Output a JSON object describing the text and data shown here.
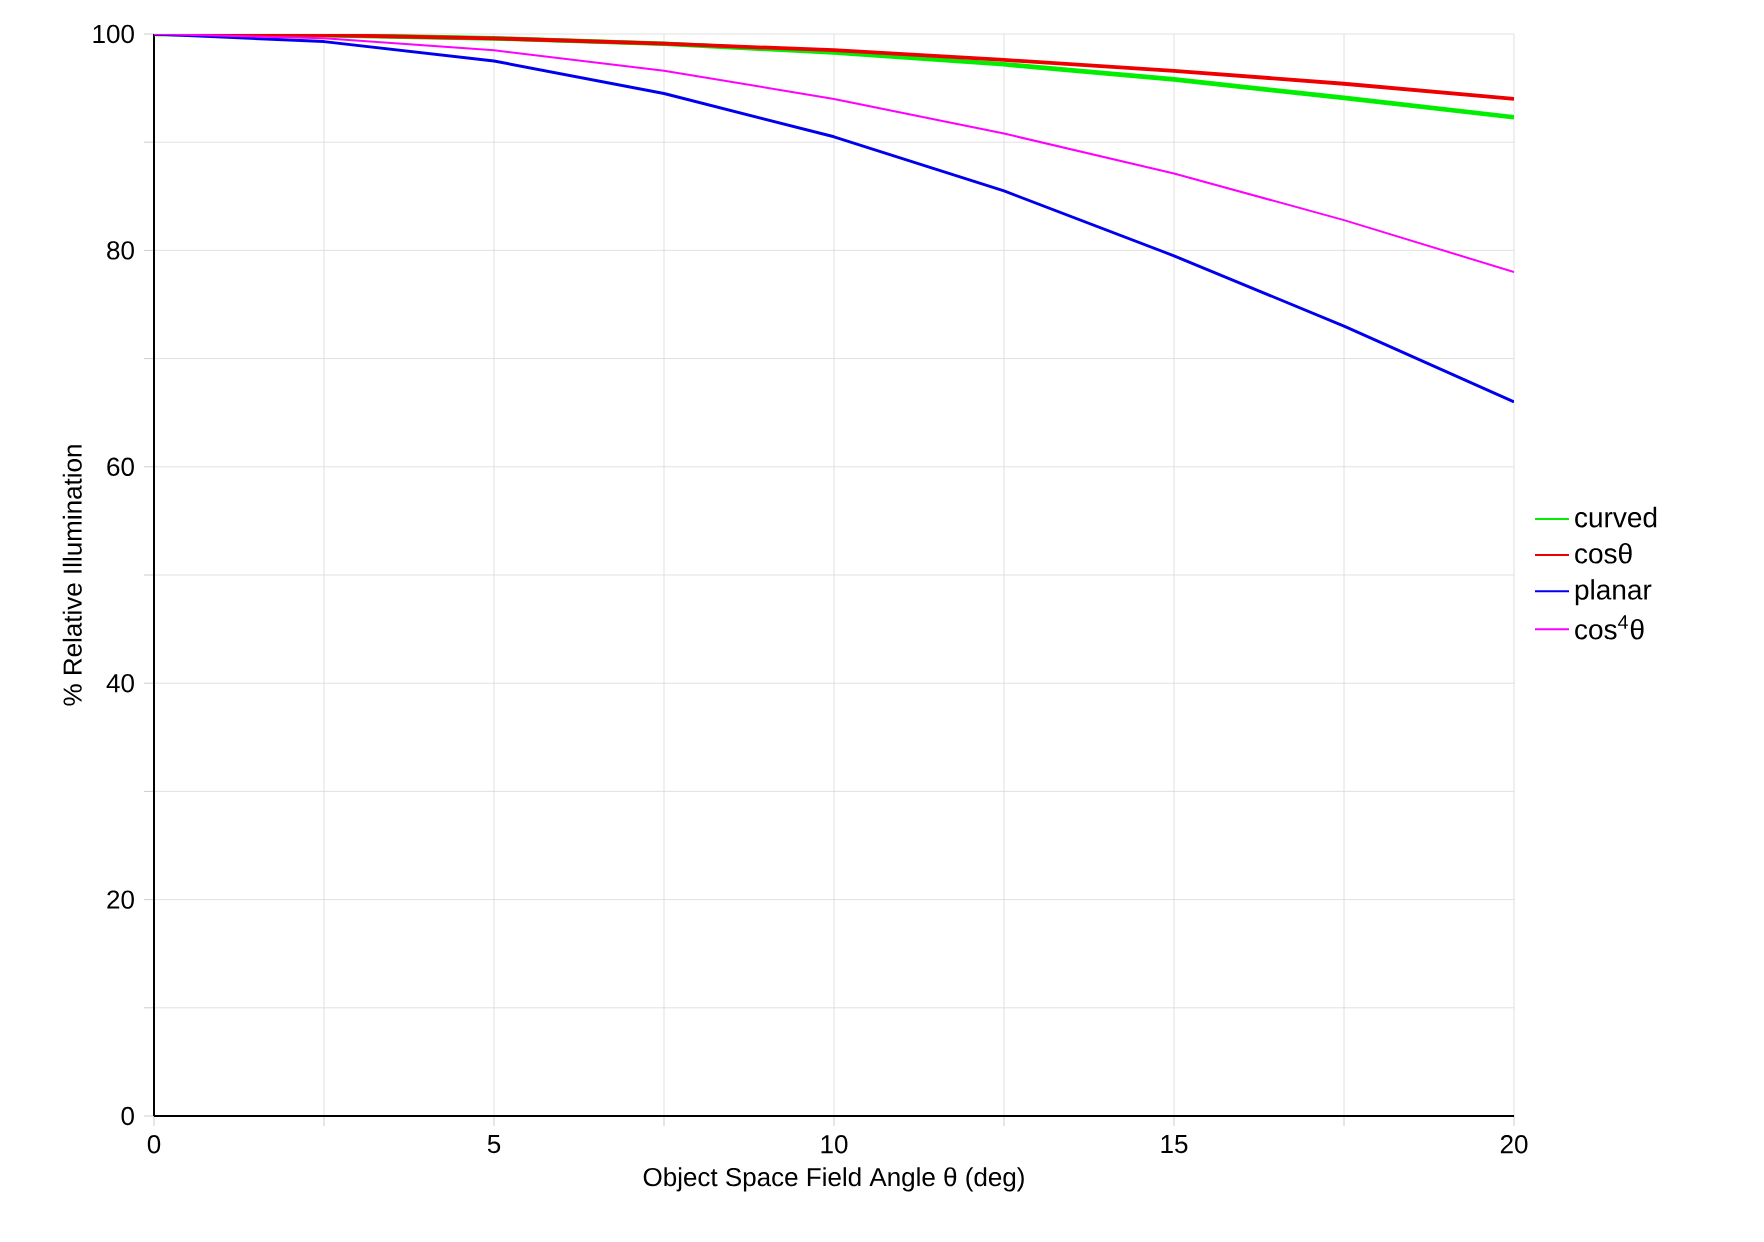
{
  "chart_data": {
    "type": "line",
    "xlabel": "Object Space Field Angle θ (deg)",
    "ylabel": "% Relative Illumination",
    "x": [
      0,
      2.5,
      5,
      7.5,
      10,
      12.5,
      15,
      17.5,
      20
    ],
    "series": [
      {
        "name": "curved",
        "color": "#00ee00",
        "values": [
          100,
          99.9,
          99.6,
          99.1,
          98.3,
          97.2,
          95.8,
          94.1,
          92.3
        ]
      },
      {
        "name": "cosθ",
        "color": "#ee0000",
        "values": [
          100,
          99.9,
          99.6,
          99.1,
          98.5,
          97.6,
          96.6,
          95.4,
          94.0
        ]
      },
      {
        "name": "planar",
        "color": "#0000ee",
        "values": [
          100,
          99.3,
          97.5,
          94.5,
          90.5,
          85.5,
          79.5,
          73,
          66
        ]
      },
      {
        "name": "cos$^{4}$θ",
        "color": "#ff00ff",
        "values": [
          100,
          99.6,
          98.5,
          96.6,
          94.0,
          90.8,
          87.1,
          82.8,
          78.0
        ]
      }
    ],
    "xlim": [
      0,
      20
    ],
    "ylim": [
      0,
      100
    ],
    "xticks": [
      0,
      {
        "value": 2.5,
        "label": null
      },
      5,
      {
        "value": 7.5,
        "label": null
      },
      10,
      {
        "value": 12.5,
        "label": null
      },
      15,
      {
        "value": 17.5,
        "label": null
      },
      20
    ],
    "yticks": [
      0,
      {
        "value": 10,
        "label": null
      },
      20,
      {
        "value": 30,
        "label": null
      },
      40,
      {
        "value": 50,
        "label": null
      },
      60,
      {
        "value": 70,
        "label": null
      },
      80,
      {
        "value": 90,
        "label": null
      },
      100
    ],
    "grid": true,
    "legend": "right",
    "marker": "none",
    "line_style": "solid"
  }
}
